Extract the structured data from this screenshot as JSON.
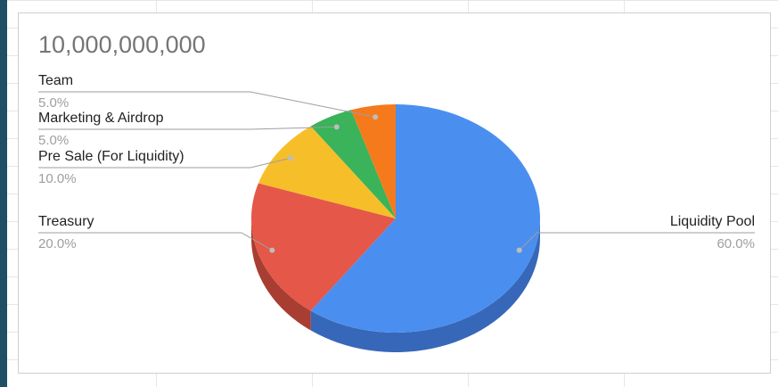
{
  "chart_data": {
    "type": "pie",
    "title": "10,000,000,000",
    "slices": [
      {
        "label": "Liquidity Pool",
        "value": 60.0,
        "pct_label": "60.0%",
        "color": "#4a8ff0",
        "side_color": "#3767b9"
      },
      {
        "label": "Treasury",
        "value": 20.0,
        "pct_label": "20.0%",
        "color": "#e55748",
        "side_color": "#a83d31"
      },
      {
        "label": "Pre Sale (For Liquidity)",
        "value": 10.0,
        "pct_label": "10.0%",
        "color": "#f6bf2a",
        "side_color": "#b58a1a"
      },
      {
        "label": "Marketing & Airdrop",
        "value": 5.0,
        "pct_label": "5.0%",
        "color": "#3ab35a",
        "side_color": "#2a8242"
      },
      {
        "label": "Team",
        "value": 5.0,
        "pct_label": "5.0%",
        "color": "#f57a1c",
        "side_color": "#b55914"
      }
    ],
    "style": "3d",
    "legend": "none"
  }
}
